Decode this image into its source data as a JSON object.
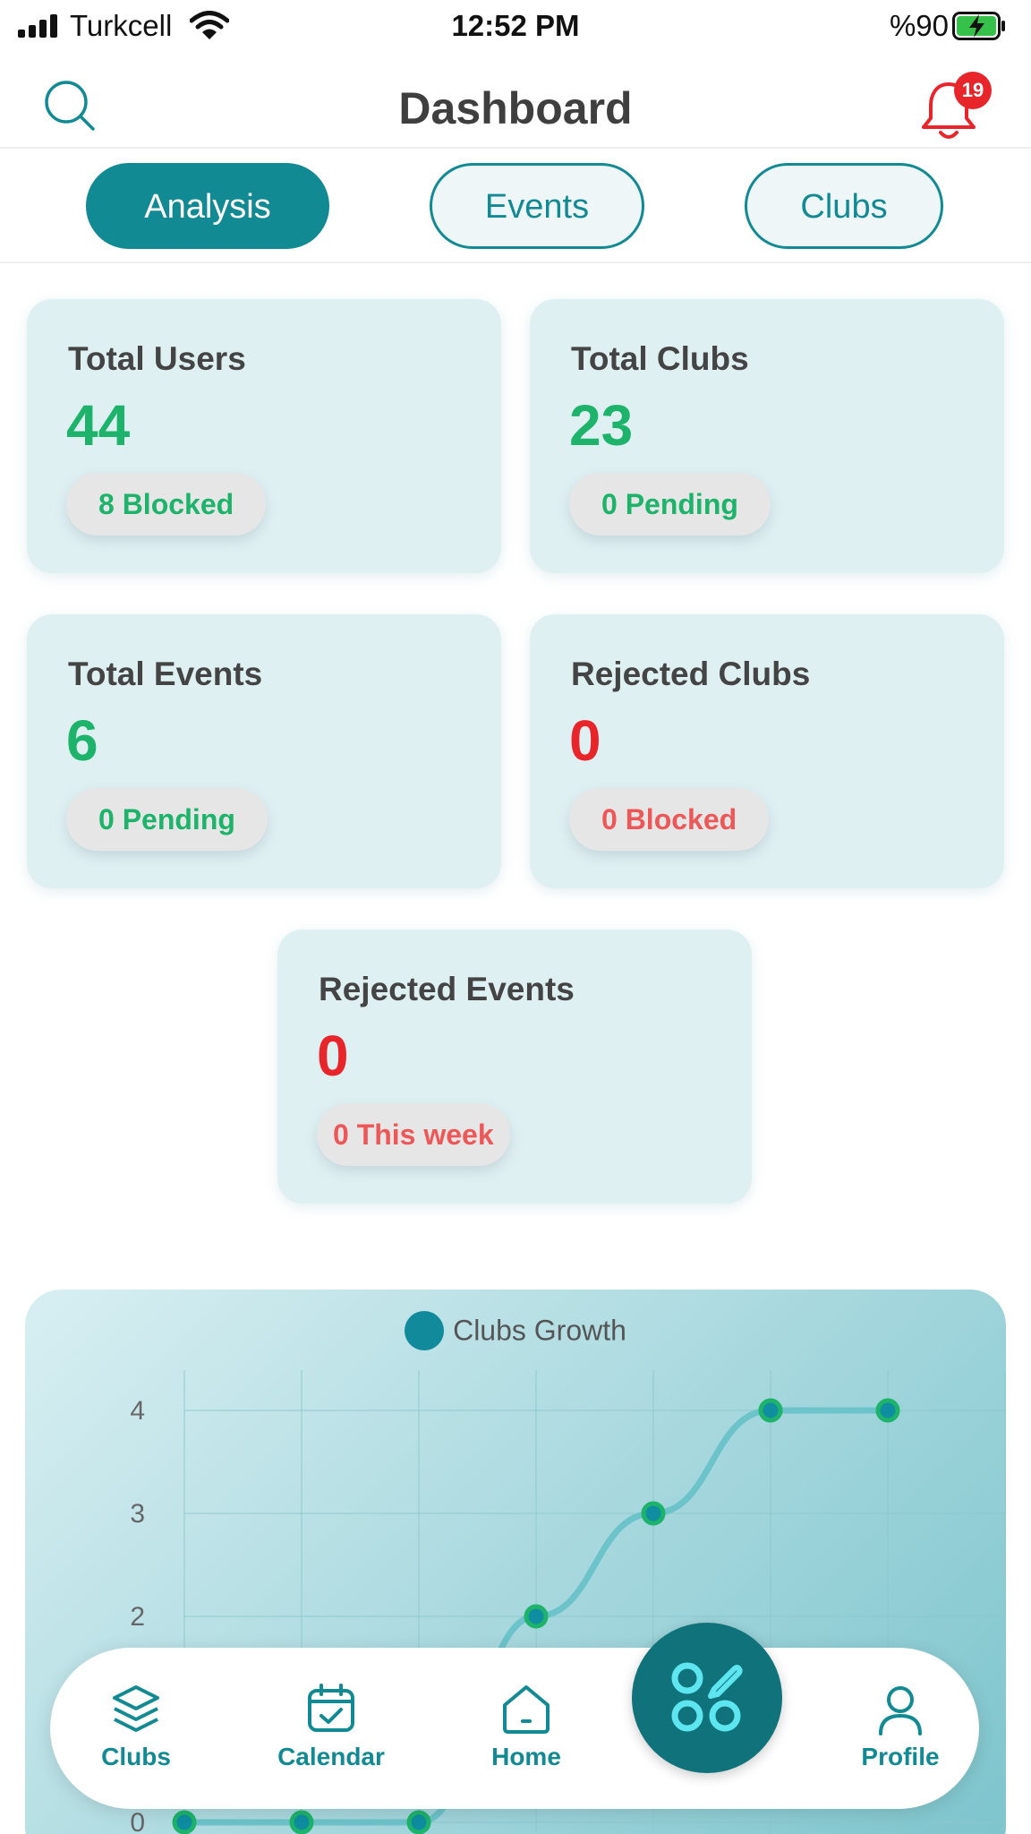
{
  "status_bar": {
    "carrier": "Turkcell",
    "time": "12:52 PM",
    "battery": "%90"
  },
  "header": {
    "title": "Dashboard",
    "notification_count": "19"
  },
  "tabs": [
    {
      "label": "Analysis",
      "active": true
    },
    {
      "label": "Events",
      "active": false
    },
    {
      "label": "Clubs",
      "active": false
    }
  ],
  "stats": {
    "total_users": {
      "title": "Total Users",
      "value": "44",
      "pill": "8 Blocked"
    },
    "total_clubs": {
      "title": "Total Clubs",
      "value": "23",
      "pill": "0 Pending"
    },
    "total_events": {
      "title": "Total Events",
      "value": "6",
      "pill": "0 Pending"
    },
    "rejected_clubs": {
      "title": "Rejected Clubs",
      "value": "0",
      "pill": "0 Blocked"
    },
    "rejected_events": {
      "title": "Rejected Events",
      "value": "0",
      "pill": "0 This week"
    }
  },
  "chart_data": {
    "type": "line",
    "legend": "Clubs Growth",
    "series": [
      {
        "name": "Clubs Growth",
        "values": [
          0,
          0,
          0,
          2,
          3,
          4,
          4
        ]
      }
    ],
    "y_ticks": [
      "0",
      "2",
      "3",
      "4"
    ],
    "ylim": [
      0,
      4
    ],
    "grid": true,
    "colors": {
      "line": "#6cc3c9",
      "point": "#0e8ea0",
      "point_ring": "#1db36b"
    }
  },
  "bottom_nav": {
    "clubs": "Clubs",
    "calendar": "Calendar",
    "home": "Home",
    "profile": "Profile"
  },
  "colors": {
    "accent": "#118a93",
    "green": "#1db36b",
    "red": "#e8252b"
  }
}
